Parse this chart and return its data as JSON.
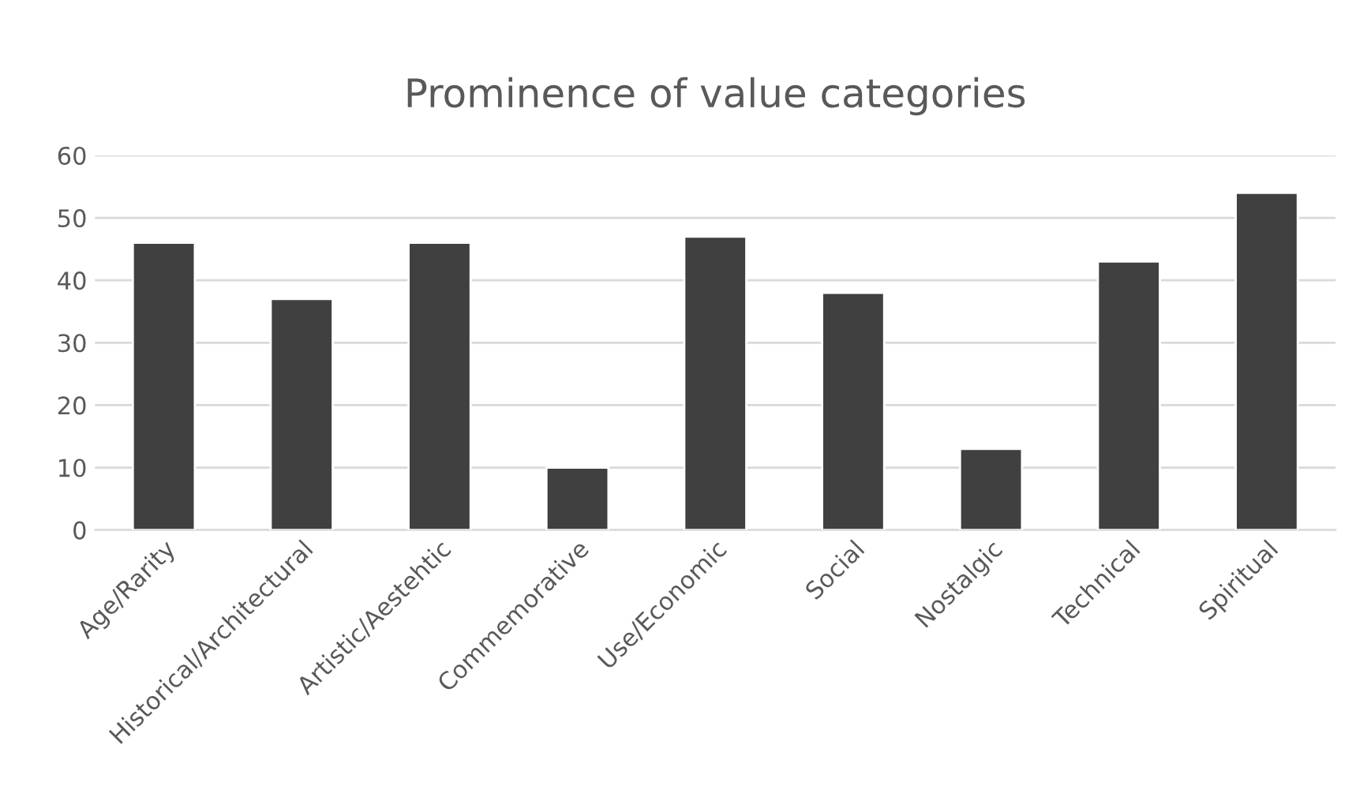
{
  "chart_data": {
    "type": "bar",
    "title": "Prominence of value categories",
    "categories": [
      "Age/Rarity",
      "Historical/Architectural",
      "Artistic/Aestehtic",
      "Commemorative",
      "Use/Economic",
      "Social",
      "Nostalgic",
      "Technical",
      "Spiritual"
    ],
    "values": [
      46,
      37,
      46,
      10,
      47,
      38,
      13,
      43,
      54
    ],
    "color": "#404040",
    "ylim": [
      0,
      60
    ],
    "yticks": [
      0,
      10,
      20,
      30,
      40,
      50,
      60
    ],
    "grid": "y"
  }
}
